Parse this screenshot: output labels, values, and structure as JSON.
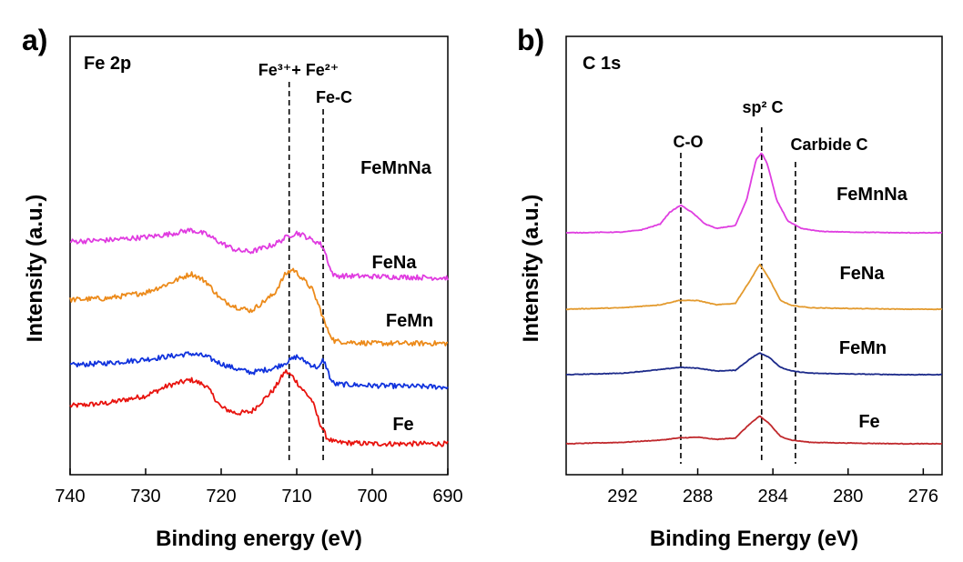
{
  "chart_data": [
    {
      "type": "line",
      "panel_label": "a)",
      "title": "Fe 2p",
      "xlabel": "Binding energy (eV)",
      "ylabel": "Intensity (a.u.)",
      "xlim": [
        740,
        690
      ],
      "x_ticks": [
        "740",
        "730",
        "720",
        "710",
        "700",
        "690"
      ],
      "y_ticks": [],
      "grid": false,
      "annotations": [
        {
          "text": "Fe³⁺+ Fe²⁺",
          "x": 711
        },
        {
          "text": "Fe-C",
          "x": 706.5
        }
      ],
      "series": [
        {
          "name": "Fe",
          "color": "#e8130e",
          "offset": 0,
          "x": [
            740,
            735,
            730,
            727,
            724,
            722,
            720,
            718,
            716,
            713,
            711.5,
            710.5,
            709.5,
            708,
            707,
            706,
            705,
            700,
            695,
            690
          ],
          "y": [
            0.52,
            0.56,
            0.66,
            0.8,
            0.88,
            0.8,
            0.5,
            0.42,
            0.44,
            0.75,
            1.0,
            0.92,
            0.78,
            0.6,
            0.3,
            0.08,
            0.02,
            0.0,
            0.0,
            0.0
          ]
        },
        {
          "name": "FeMn",
          "color": "#1133dd",
          "offset": 0.78,
          "x": [
            740,
            735,
            730,
            727,
            724,
            722,
            720,
            718,
            716,
            713,
            711,
            710,
            709,
            708,
            707,
            706.5,
            706,
            705.5,
            705,
            700,
            695,
            690
          ],
          "y": [
            0.3,
            0.33,
            0.38,
            0.42,
            0.46,
            0.42,
            0.32,
            0.25,
            0.2,
            0.26,
            0.36,
            0.42,
            0.36,
            0.3,
            0.26,
            0.38,
            0.26,
            0.1,
            0.04,
            0.02,
            0.01,
            0.0
          ]
        },
        {
          "name": "FeNa",
          "color": "#ec8a1a",
          "offset": 1.38,
          "x": [
            740,
            735,
            730,
            727,
            724,
            722,
            720,
            718,
            716,
            713,
            711.5,
            710.5,
            709.5,
            708,
            707,
            706,
            705,
            700,
            695,
            690
          ],
          "y": [
            0.6,
            0.62,
            0.7,
            0.82,
            0.96,
            0.85,
            0.6,
            0.5,
            0.45,
            0.68,
            0.95,
            1.02,
            0.92,
            0.75,
            0.5,
            0.2,
            0.03,
            0.0,
            0.0,
            0.0
          ]
        },
        {
          "name": "FeMnNa",
          "color": "#e03be0",
          "offset": 2.28,
          "x": [
            740,
            735,
            730,
            727,
            724,
            722,
            720,
            718,
            716,
            713,
            711,
            710,
            709,
            708,
            707,
            706.5,
            706,
            705.5,
            705,
            700,
            695,
            690
          ],
          "y": [
            0.5,
            0.52,
            0.56,
            0.6,
            0.66,
            0.6,
            0.48,
            0.38,
            0.36,
            0.46,
            0.58,
            0.62,
            0.58,
            0.52,
            0.48,
            0.42,
            0.28,
            0.1,
            0.03,
            0.02,
            0.01,
            0.0
          ]
        }
      ],
      "reference_lines": [
        711,
        706.5
      ]
    },
    {
      "type": "line",
      "panel_label": "b)",
      "title": "C 1s",
      "xlabel": "Binding Energy (eV)",
      "ylabel": "Intensity (a.u.)",
      "xlim": [
        295,
        275
      ],
      "x_ticks": [
        "292",
        "288",
        "284",
        "280",
        "276"
      ],
      "y_ticks": [],
      "grid": false,
      "annotations": [
        {
          "text": "C-O",
          "x": 288.9
        },
        {
          "text": "sp² C",
          "x": 284.6
        },
        {
          "text": "Carbide C",
          "x": 282.8
        }
      ],
      "series": [
        {
          "name": "Fe",
          "color": "#c0282c",
          "offset": 0,
          "x": [
            295,
            292,
            290,
            289,
            288,
            287,
            286,
            285.2,
            284.7,
            284.2,
            283.6,
            283,
            282,
            280,
            277,
            275
          ],
          "y": [
            0.0,
            0.02,
            0.05,
            0.08,
            0.09,
            0.06,
            0.08,
            0.28,
            0.38,
            0.28,
            0.1,
            0.05,
            0.02,
            0.01,
            0.0,
            0.0
          ]
        },
        {
          "name": "FeMn",
          "color": "#1c2a8a",
          "offset": 0.95,
          "x": [
            295,
            292,
            290,
            289,
            288,
            287,
            286,
            285.2,
            284.7,
            284.2,
            283.6,
            283,
            282,
            280,
            277,
            275
          ],
          "y": [
            0.0,
            0.02,
            0.07,
            0.1,
            0.09,
            0.05,
            0.06,
            0.22,
            0.3,
            0.24,
            0.1,
            0.05,
            0.02,
            0.01,
            0.0,
            0.0
          ]
        },
        {
          "name": "FeNa",
          "color": "#e39a2e",
          "offset": 1.85,
          "x": [
            295,
            292,
            290,
            289,
            288,
            287,
            286,
            285.2,
            284.7,
            284.2,
            283.6,
            283,
            282,
            280,
            277,
            275
          ],
          "y": [
            0.0,
            0.02,
            0.06,
            0.12,
            0.12,
            0.06,
            0.08,
            0.4,
            0.62,
            0.42,
            0.12,
            0.05,
            0.02,
            0.01,
            0.0,
            0.0
          ]
        },
        {
          "name": "FeMnNa",
          "color": "#df3ee0",
          "offset": 2.9,
          "x": [
            295,
            292,
            291,
            290,
            289.5,
            288.9,
            288.3,
            287.6,
            287,
            286,
            285.4,
            284.9,
            284.6,
            284.3,
            283.8,
            283.2,
            282.5,
            281.5,
            280,
            277,
            275
          ],
          "y": [
            0.0,
            0.01,
            0.04,
            0.12,
            0.28,
            0.38,
            0.28,
            0.12,
            0.06,
            0.1,
            0.45,
            1.0,
            1.1,
            0.95,
            0.45,
            0.16,
            0.06,
            0.02,
            0.01,
            0.0,
            0.0
          ]
        }
      ],
      "reference_lines": [
        288.9,
        284.6,
        282.8
      ]
    }
  ]
}
